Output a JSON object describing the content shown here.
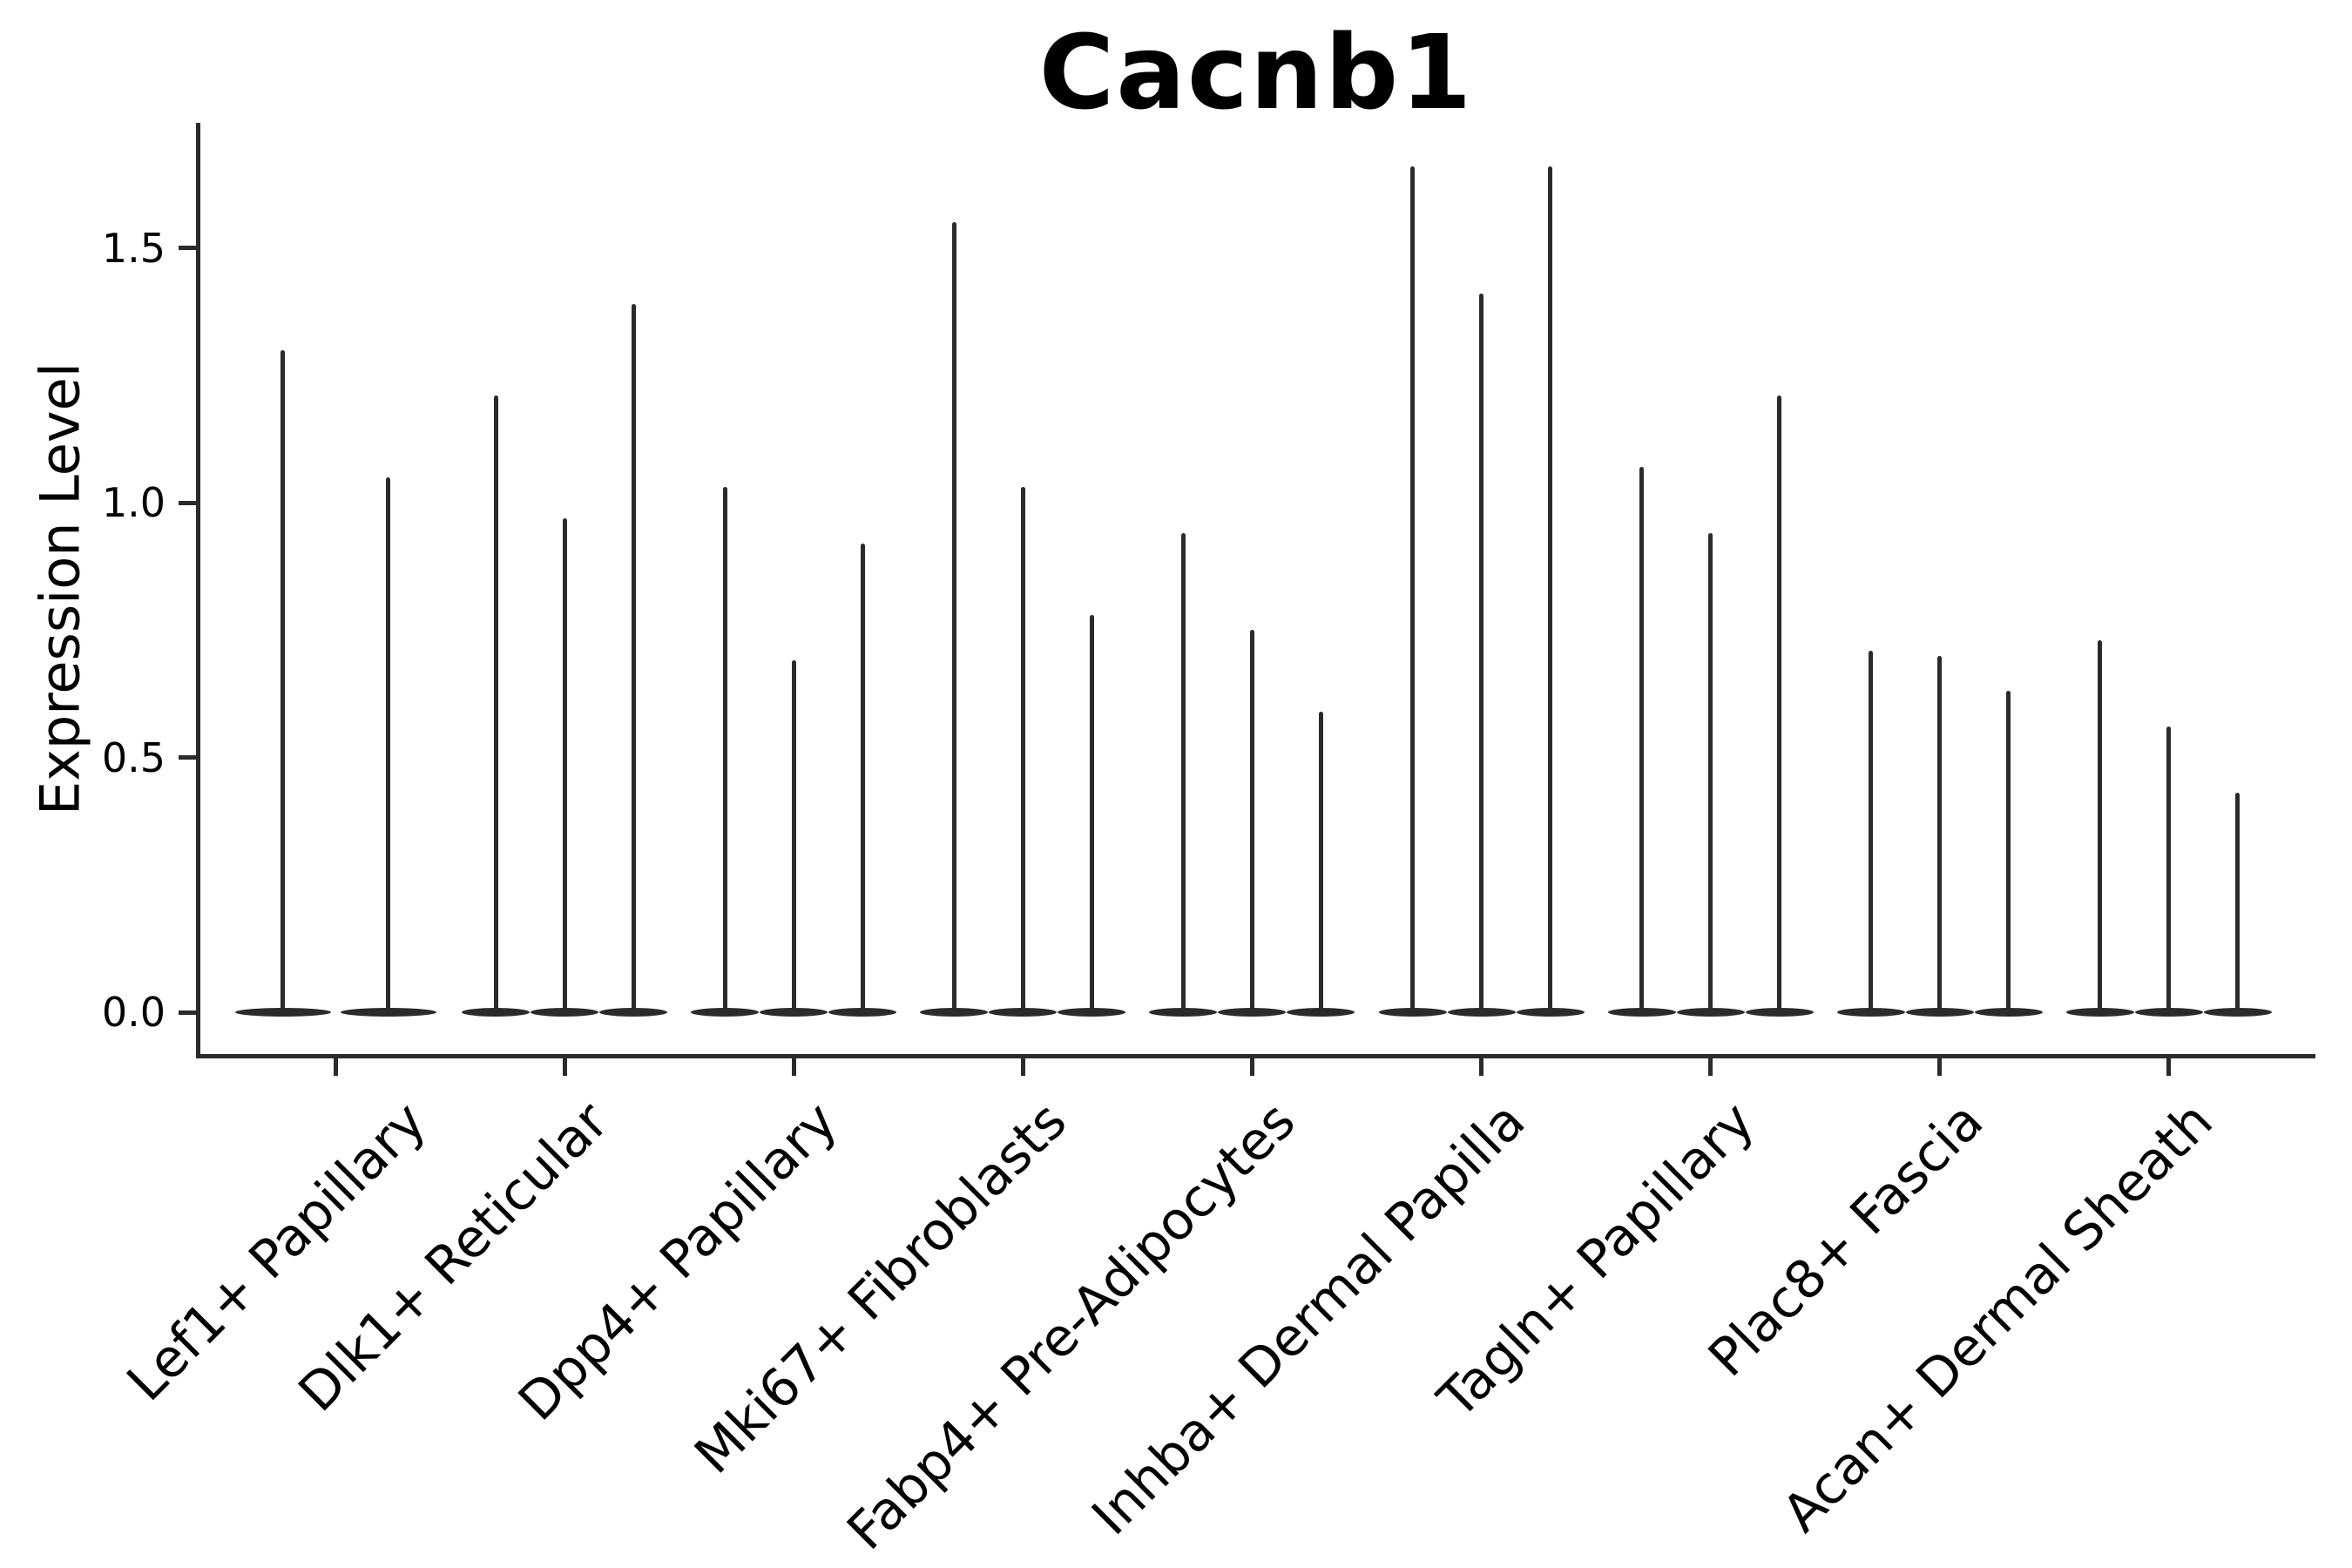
{
  "page_title": "Cacnb1",
  "chart_data": {
    "type": "violin",
    "title": "Cacnb1",
    "xlabel": "",
    "ylabel": "Expression Level",
    "ytick_labels": [
      "0.0",
      "0.5",
      "1.0",
      "1.5"
    ],
    "ytick_values": [
      0.0,
      0.5,
      1.0,
      1.5
    ],
    "ylim": [
      0.0,
      1.74
    ],
    "grid": false,
    "legend": "none",
    "violin_style": "needle-thin violins (near-zero density except at 0) with flat basal bulge at expression 0",
    "categories": [
      "Lef1+ Papillary",
      "Dlk1+ Reticular",
      "Dpp4+ Papillary",
      "Mki67+ Fibroblasts",
      "Fabp4+ Pre-Adipocytes",
      "Inhba+ Dermal Papilla",
      "Tagln+ Papillary",
      "Plac8+ Fascia",
      "Acan+ Dermal Sheath"
    ],
    "groups": [
      {
        "category": "Lef1+ Papillary",
        "violin_max_expression": [
          1.3,
          1.05
        ]
      },
      {
        "category": "Dlk1+ Reticular",
        "violin_max_expression": [
          1.21,
          0.97,
          1.39
        ]
      },
      {
        "category": "Dpp4+ Papillary",
        "violin_max_expression": [
          1.03,
          0.69,
          0.92
        ]
      },
      {
        "category": "Mki67+ Fibroblasts",
        "violin_max_expression": [
          1.55,
          1.03,
          0.78
        ]
      },
      {
        "category": "Fabp4+ Pre-Adipocytes",
        "violin_max_expression": [
          0.94,
          0.75,
          0.59
        ]
      },
      {
        "category": "Inhba+ Dermal Papilla",
        "violin_max_expression": [
          1.66,
          1.41,
          1.66
        ]
      },
      {
        "category": "Tagln+ Papillary",
        "violin_max_expression": [
          1.07,
          0.94,
          1.21
        ]
      },
      {
        "category": "Plac8+ Fascia",
        "violin_max_expression": [
          0.71,
          0.7,
          0.63
        ]
      },
      {
        "category": "Acan+ Dermal Sheath",
        "violin_max_expression": [
          0.73,
          0.56,
          0.43
        ]
      }
    ],
    "colors": {
      "line": "#2b2b2b",
      "text": "#000000",
      "background": "#ffffff"
    }
  }
}
